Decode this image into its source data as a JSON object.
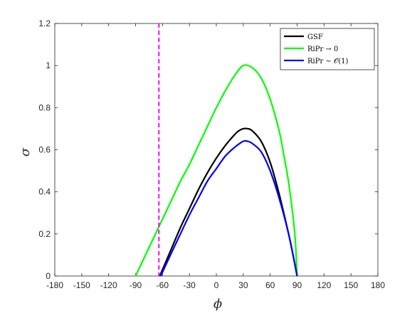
{
  "chart_data": {
    "type": "line",
    "xlabel": "ϕ",
    "ylabel": "σ",
    "xlim": [
      -180,
      180
    ],
    "ylim": [
      0,
      1.2
    ],
    "xticks": [
      -180,
      -150,
      -120,
      -90,
      -60,
      -30,
      0,
      30,
      60,
      90,
      120,
      150,
      180
    ],
    "yticks": [
      0,
      0.2,
      0.4,
      0.6,
      0.8,
      1,
      1.2
    ],
    "xtick_labels": [
      "-180",
      "-150",
      "-120",
      "-90",
      "-60",
      "-30",
      "0",
      "30",
      "60",
      "90",
      "120",
      "150",
      "180"
    ],
    "ytick_labels": [
      "0",
      "0.2",
      "0.4",
      "0.6",
      "0.8",
      "1",
      "1.2"
    ],
    "grid": false,
    "legend_position": "top-right",
    "series": [
      {
        "name": "GSF",
        "color": "#000000",
        "x": [
          -63,
          -50,
          -40,
          -30,
          -20,
          -10,
          0,
          10,
          20,
          25,
          30,
          35,
          40,
          50,
          60,
          70,
          80,
          85,
          90
        ],
        "y": [
          0,
          0.13,
          0.23,
          0.32,
          0.41,
          0.49,
          0.56,
          0.62,
          0.67,
          0.69,
          0.7,
          0.7,
          0.69,
          0.64,
          0.54,
          0.39,
          0.21,
          0.11,
          0
        ]
      },
      {
        "name": "RiPr → 0",
        "color": "#00ff00",
        "x": [
          -90,
          -80,
          -70,
          -60,
          -50,
          -40,
          -30,
          -20,
          -10,
          0,
          10,
          20,
          30,
          40,
          50,
          60,
          70,
          75,
          80,
          85,
          88,
          90
        ],
        "y": [
          0,
          0.09,
          0.18,
          0.27,
          0.36,
          0.45,
          0.53,
          0.62,
          0.71,
          0.8,
          0.88,
          0.95,
          1.0,
          0.99,
          0.94,
          0.84,
          0.69,
          0.58,
          0.46,
          0.3,
          0.17,
          0
        ]
      },
      {
        "name": "RiPr ~ 𝒪(1)",
        "color": "#0000ff",
        "x": [
          -62,
          -50,
          -40,
          -30,
          -20,
          -10,
          0,
          10,
          20,
          30,
          35,
          40,
          50,
          60,
          70,
          80,
          85,
          90
        ],
        "y": [
          0,
          0.11,
          0.2,
          0.29,
          0.37,
          0.45,
          0.51,
          0.57,
          0.61,
          0.64,
          0.64,
          0.63,
          0.59,
          0.5,
          0.37,
          0.21,
          0.11,
          0
        ]
      }
    ],
    "reference_lines": [
      {
        "orientation": "vertical",
        "x": -64,
        "color": "#ff00ff",
        "style": "dashed"
      }
    ]
  }
}
